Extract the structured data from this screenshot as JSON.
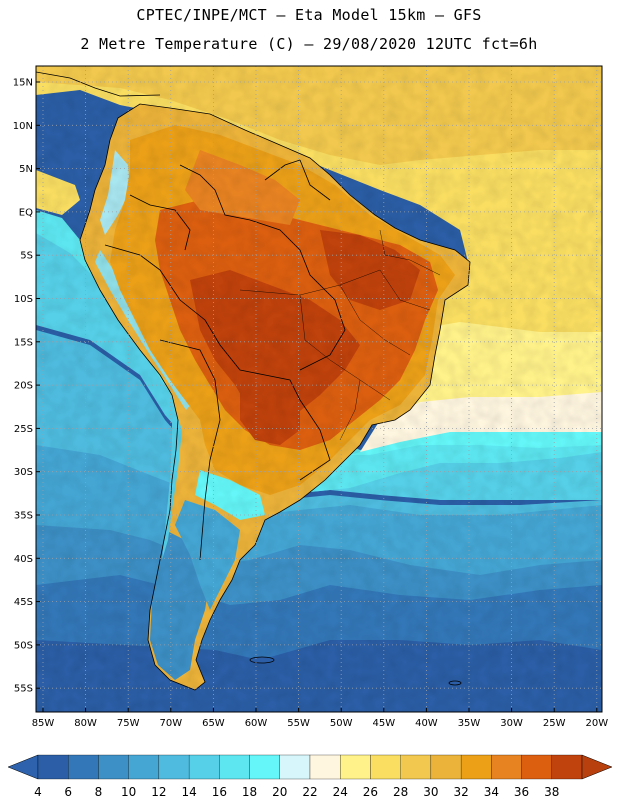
{
  "title_line1": "CPTEC/INPE/MCT –  Eta Model 15km – GFS",
  "title_line2": "2 Metre Temperature (C) – 29/08/2020 12UTC fct=6h",
  "lat_labels": [
    "15N",
    "10N",
    "5N",
    "EQ",
    "5S",
    "10S",
    "15S",
    "20S",
    "25S",
    "30S",
    "35S",
    "40S",
    "45S",
    "50S",
    "55S"
  ],
  "lon_labels": [
    "85W",
    "80W",
    "75W",
    "70W",
    "65W",
    "60W",
    "55W",
    "50W",
    "45W",
    "40W",
    "35W",
    "30W",
    "25W",
    "20W"
  ],
  "colorbar": {
    "labels": [
      "4",
      "6",
      "8",
      "10",
      "12",
      "14",
      "16",
      "18",
      "20",
      "22",
      "24",
      "26",
      "28",
      "30",
      "32",
      "34",
      "36",
      "38"
    ],
    "colors": [
      "#2b5ea6",
      "#3377b8",
      "#3d90c6",
      "#45a6d4",
      "#4fbcdf",
      "#56d0e8",
      "#5de6f0",
      "#64f6f8",
      "#d6f6fb",
      "#fff6e0",
      "#fff28a",
      "#f9de62",
      "#f2c94e",
      "#ecb33a",
      "#eba018",
      "#e88322",
      "#dc5f10",
      "#c0420c"
    ],
    "low_color": "#2e62ad",
    "high_color": "#b8400e"
  },
  "zones": [
    {
      "name": "ocean-0-4",
      "value": "4",
      "color": "#2b5ea6"
    },
    {
      "name": "ocean-6",
      "value": "6",
      "color": "#3377b8"
    },
    {
      "name": "ocean-8",
      "value": "8",
      "color": "#3d90c6"
    },
    {
      "name": "ocean-10",
      "value": "10",
      "color": "#45a6d4"
    },
    {
      "name": "ocean-14",
      "value": "14",
      "color": "#56d0e8"
    },
    {
      "name": "ocean-16",
      "value": "16",
      "color": "#5de6f0"
    },
    {
      "name": "ocean-18",
      "value": "18",
      "color": "#64f6f8"
    },
    {
      "name": "atlantic-warm",
      "value": "22",
      "color": "#fff6e0"
    },
    {
      "name": "atlantic-24",
      "value": "24",
      "color": "#fff28a"
    },
    {
      "name": "atlantic-26",
      "value": "26",
      "color": "#f9de62"
    },
    {
      "name": "caribbean-28",
      "value": "28",
      "color": "#f2c94e"
    },
    {
      "name": "interior-hot",
      "value": "36",
      "color": "#dc5f10"
    },
    {
      "name": "interior-hottest",
      "value": "38",
      "color": "#c0420c"
    }
  ],
  "grid_color": "#9aa0a8",
  "frame_color": "#000000"
}
